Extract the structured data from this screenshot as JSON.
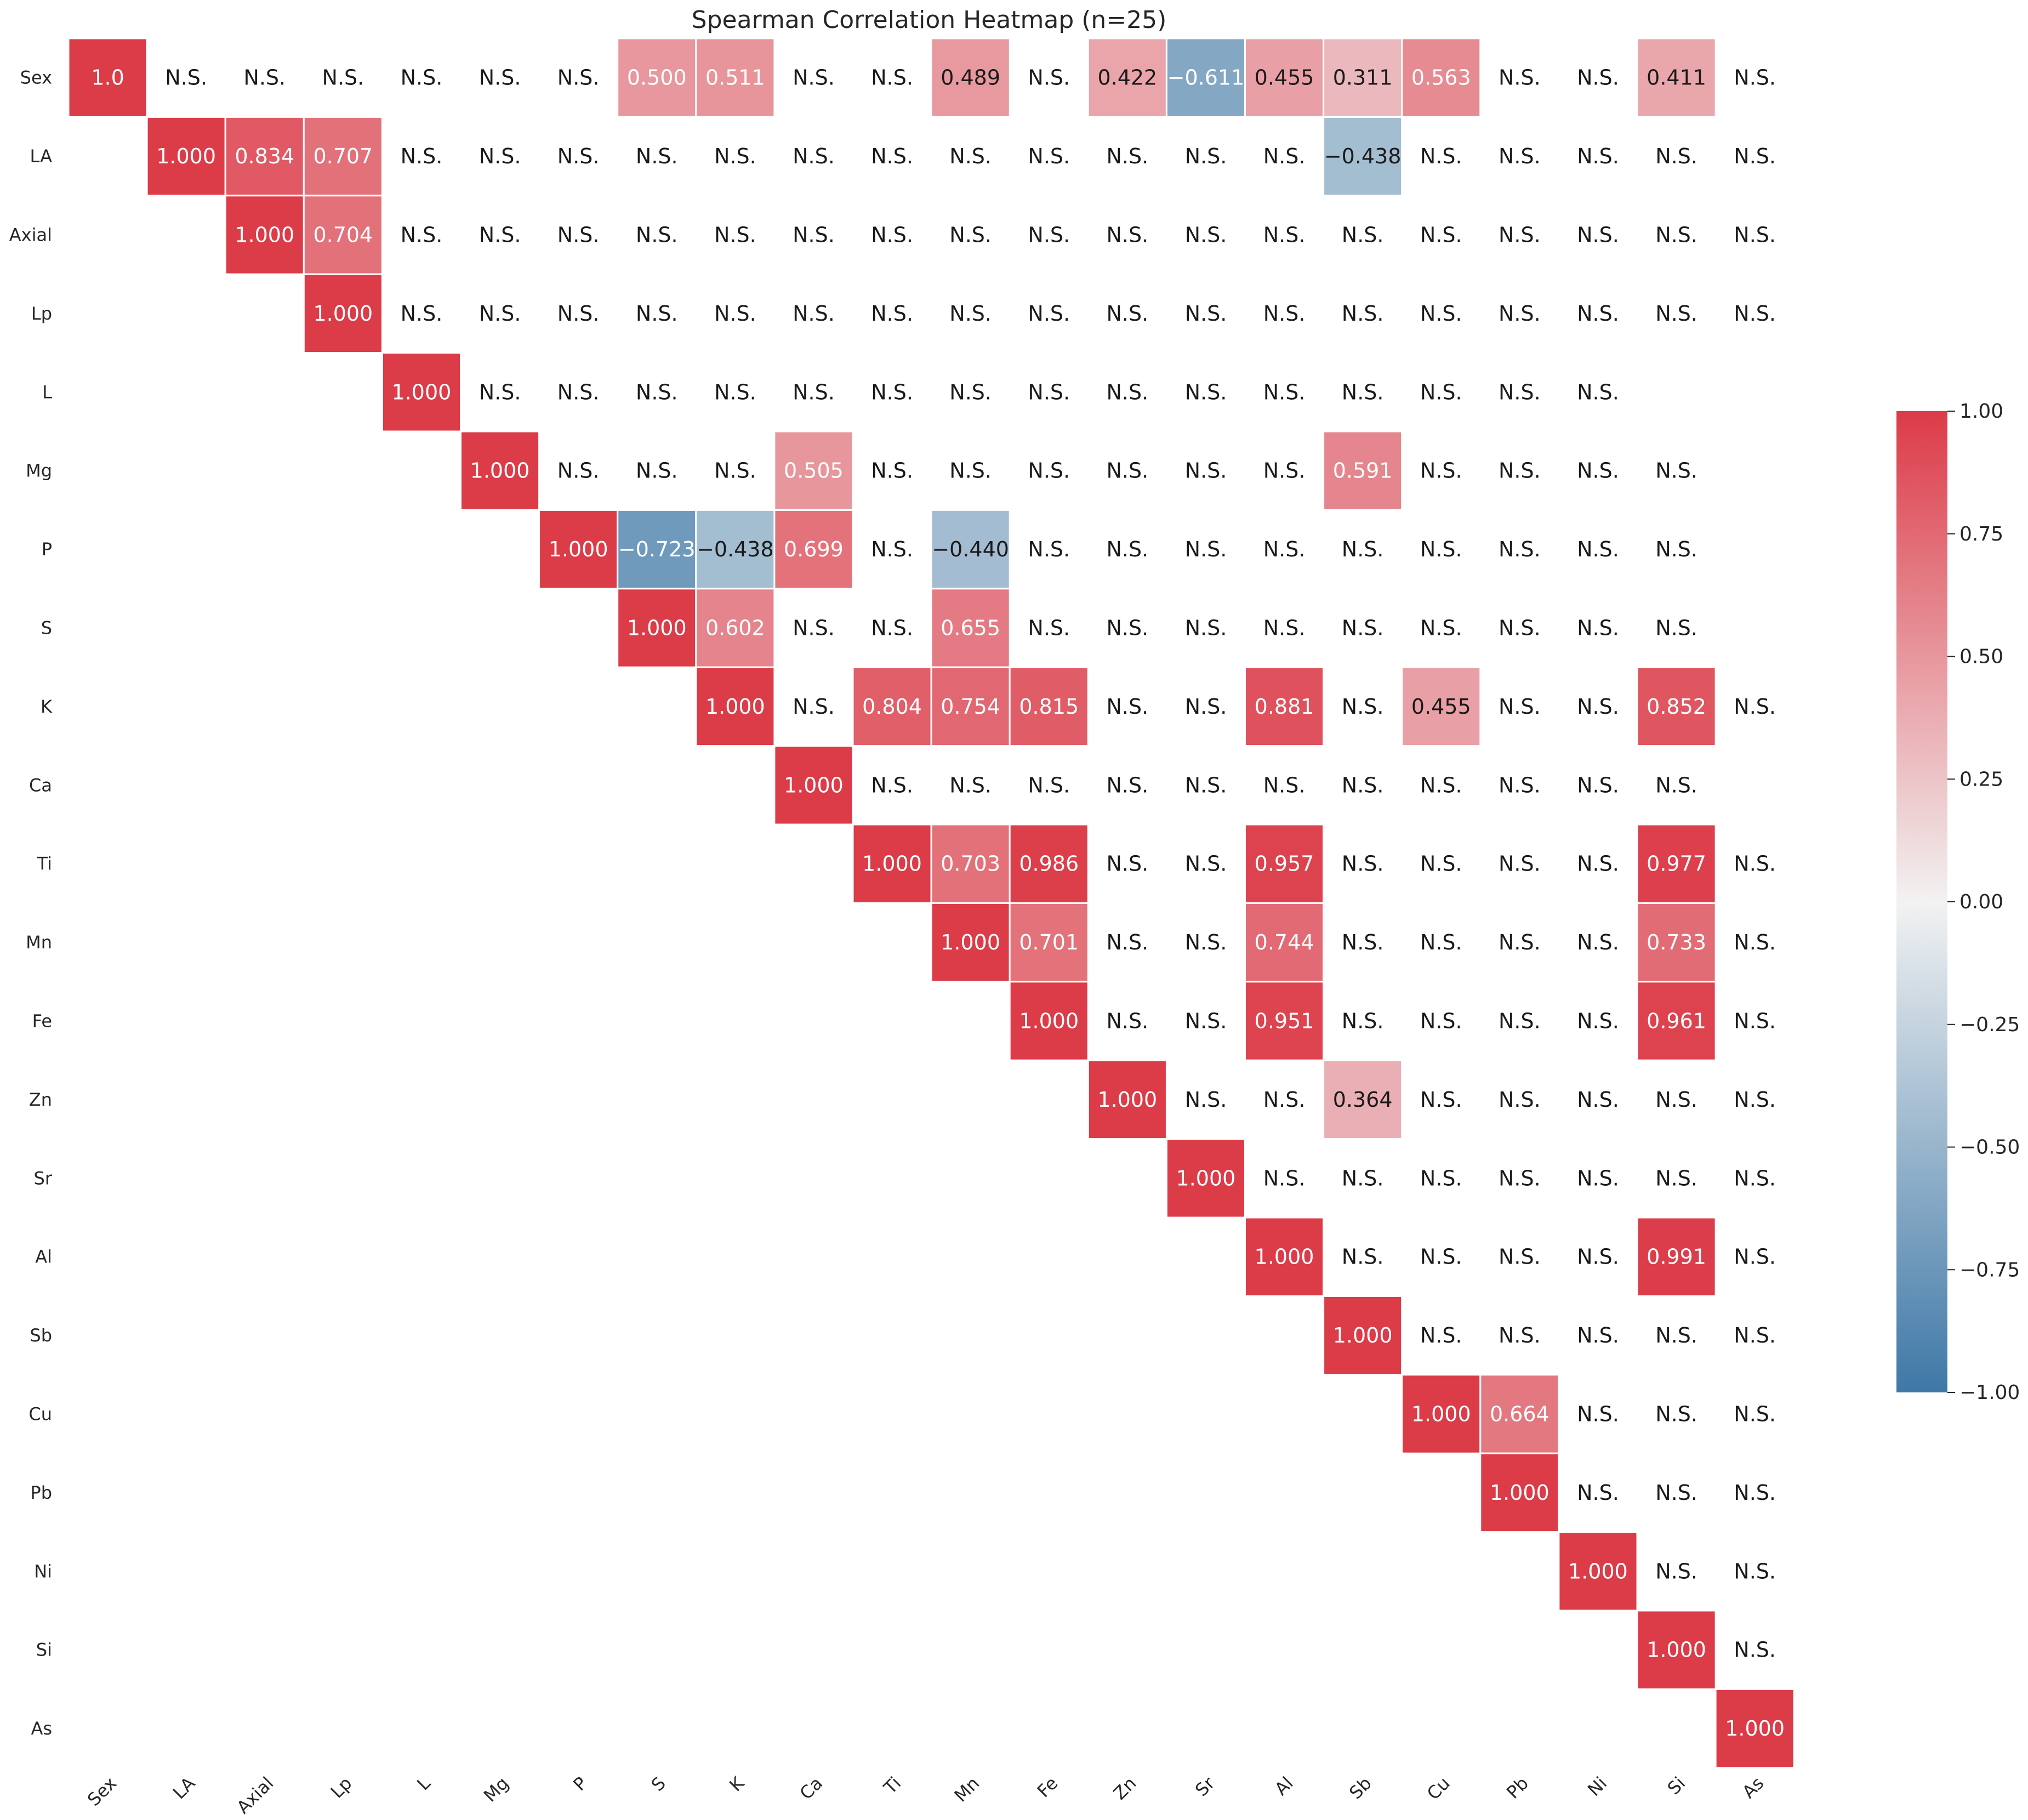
{
  "chart_data": {
    "type": "heatmap",
    "title": "Spearman Correlation Heatmap (n=25)",
    "variables": [
      "Sex",
      "LA",
      "Axial",
      "Lp",
      "L",
      "Mg",
      "P",
      "S",
      "K",
      "Ca",
      "Ti",
      "Mn",
      "Fe",
      "Zn",
      "Sr",
      "Al",
      "Sb",
      "Cu",
      "Pb",
      "Ni",
      "Si",
      "As"
    ],
    "not_significant_label": "N.S.",
    "note": "Upper triangle only. Each row lists values for columns starting at the diagonal; null = blank cell, \"N.S.\" = not significant.",
    "rows": [
      [
        1.0,
        "N.S.",
        "N.S.",
        "N.S.",
        "N.S.",
        "N.S.",
        "N.S.",
        0.5,
        0.511,
        "N.S.",
        "N.S.",
        0.489,
        "N.S.",
        0.422,
        -0.611,
        0.455,
        0.311,
        0.563,
        "N.S.",
        "N.S.",
        0.411,
        "N.S."
      ],
      [
        1.0,
        0.834,
        0.707,
        "N.S.",
        "N.S.",
        "N.S.",
        "N.S.",
        "N.S.",
        "N.S.",
        "N.S.",
        "N.S.",
        "N.S.",
        "N.S.",
        "N.S.",
        "N.S.",
        -0.438,
        "N.S.",
        "N.S.",
        "N.S.",
        "N.S.",
        "N.S."
      ],
      [
        1.0,
        0.704,
        "N.S.",
        "N.S.",
        "N.S.",
        "N.S.",
        "N.S.",
        "N.S.",
        "N.S.",
        "N.S.",
        "N.S.",
        "N.S.",
        "N.S.",
        "N.S.",
        "N.S.",
        "N.S.",
        "N.S.",
        "N.S.",
        "N.S.",
        "N.S."
      ],
      [
        1.0,
        "N.S.",
        "N.S.",
        "N.S.",
        "N.S.",
        "N.S.",
        "N.S.",
        "N.S.",
        "N.S.",
        "N.S.",
        "N.S.",
        "N.S.",
        "N.S.",
        "N.S.",
        "N.S.",
        "N.S.",
        "N.S.",
        "N.S.",
        "N.S."
      ],
      [
        1.0,
        "N.S.",
        "N.S.",
        "N.S.",
        "N.S.",
        "N.S.",
        "N.S.",
        "N.S.",
        "N.S.",
        "N.S.",
        "N.S.",
        "N.S.",
        "N.S.",
        "N.S.",
        "N.S.",
        "N.S.",
        null
      ],
      [
        1.0,
        "N.S.",
        "N.S.",
        "N.S.",
        0.505,
        "N.S.",
        "N.S.",
        "N.S.",
        "N.S.",
        "N.S.",
        "N.S.",
        0.591,
        "N.S.",
        "N.S.",
        "N.S.",
        "N.S.",
        null
      ],
      [
        1.0,
        -0.723,
        -0.438,
        0.699,
        "N.S.",
        -0.44,
        "N.S.",
        "N.S.",
        "N.S.",
        "N.S.",
        "N.S.",
        "N.S.",
        "N.S.",
        "N.S.",
        "N.S.",
        null
      ],
      [
        1.0,
        0.602,
        "N.S.",
        "N.S.",
        0.655,
        "N.S.",
        "N.S.",
        "N.S.",
        "N.S.",
        "N.S.",
        "N.S.",
        "N.S.",
        "N.S.",
        "N.S.",
        null
      ],
      [
        1.0,
        "N.S.",
        0.804,
        0.754,
        0.815,
        "N.S.",
        "N.S.",
        0.881,
        "N.S.",
        0.455,
        "N.S.",
        "N.S.",
        0.852,
        "N.S."
      ],
      [
        1.0,
        "N.S.",
        "N.S.",
        "N.S.",
        "N.S.",
        "N.S.",
        "N.S.",
        "N.S.",
        "N.S.",
        "N.S.",
        "N.S.",
        "N.S.",
        null
      ],
      [
        1.0,
        0.703,
        0.986,
        "N.S.",
        "N.S.",
        0.957,
        "N.S.",
        "N.S.",
        "N.S.",
        "N.S.",
        0.977,
        "N.S."
      ],
      [
        1.0,
        0.701,
        "N.S.",
        "N.S.",
        0.744,
        "N.S.",
        "N.S.",
        "N.S.",
        "N.S.",
        0.733,
        "N.S."
      ],
      [
        1.0,
        "N.S.",
        "N.S.",
        0.951,
        "N.S.",
        "N.S.",
        "N.S.",
        "N.S.",
        0.961,
        "N.S."
      ],
      [
        1.0,
        "N.S.",
        "N.S.",
        0.364,
        "N.S.",
        "N.S.",
        "N.S.",
        "N.S.",
        "N.S."
      ],
      [
        1.0,
        "N.S.",
        "N.S.",
        "N.S.",
        "N.S.",
        "N.S.",
        "N.S.",
        "N.S."
      ],
      [
        1.0,
        "N.S.",
        "N.S.",
        "N.S.",
        "N.S.",
        0.991,
        "N.S."
      ],
      [
        1.0,
        "N.S.",
        "N.S.",
        "N.S.",
        "N.S.",
        "N.S."
      ],
      [
        1.0,
        0.664,
        "N.S.",
        "N.S.",
        "N.S."
      ],
      [
        1.0,
        "N.S.",
        "N.S.",
        "N.S."
      ],
      [
        1.0,
        "N.S.",
        "N.S."
      ],
      [
        1.0,
        "N.S."
      ],
      [
        1.0
      ]
    ],
    "colorbar": {
      "ticks": [
        "1.00",
        "0.75",
        "0.50",
        "0.25",
        "0.00",
        "−0.25",
        "−0.50",
        "−0.75",
        "−1.00"
      ],
      "range": [
        -1,
        1
      ]
    },
    "colors": {
      "positive": "#dc3b48",
      "neutral": "#f2f2f2",
      "negative": "#3e78a7",
      "text_dark": "#1a1a1a",
      "text_light": "#ffffff"
    }
  }
}
